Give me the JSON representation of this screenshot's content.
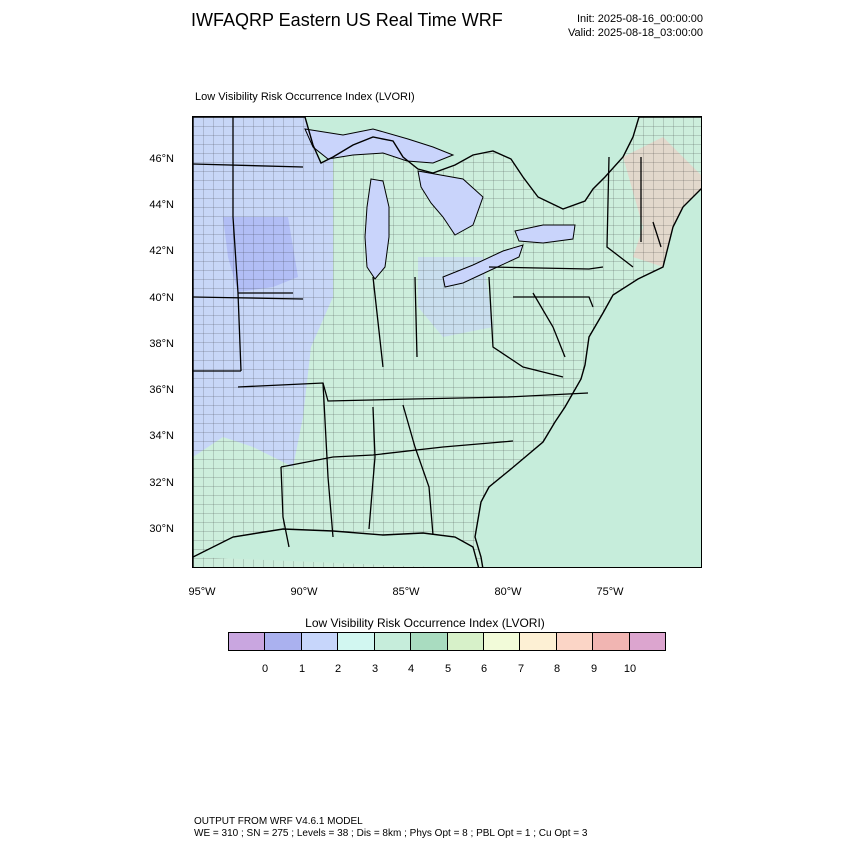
{
  "header": {
    "title": "IWFAQRP Eastern US Real Time WRF",
    "init": "Init: 2025-08-16_00:00:00",
    "valid": "Valid: 2025-08-18_03:00:00"
  },
  "map": {
    "label": "Low Visibility Risk Occurrence Index   (LVORI)",
    "lat_labels": [
      "46°N",
      "44°N",
      "42°N",
      "40°N",
      "38°N",
      "36°N",
      "34°N",
      "32°N",
      "30°N"
    ],
    "lon_labels": [
      "95°W",
      "90°W",
      "85°W",
      "80°W",
      "75°W"
    ],
    "colors": {
      "water": "#c6eddb",
      "lake": "#c9d4fb",
      "land_green": "#cdeedc",
      "land_blue": "#c6d3fa",
      "land_purple": "#aab4f3",
      "warm": "#f4c6bf",
      "outline": "#000000"
    }
  },
  "colorbar": {
    "title": "Low Visibility Risk Occurrence Index  (LVORI)",
    "colors": [
      "#c9a6e0",
      "#aab1ef",
      "#c7d6fb",
      "#d2f7f1",
      "#c6eddb",
      "#a9dcc0",
      "#d7f1c9",
      "#f2fbd9",
      "#fdf0d4",
      "#fbd5c6",
      "#f1b5b2",
      "#dca5cf"
    ],
    "labels": [
      "0",
      "1",
      "2",
      "3",
      "4",
      "5",
      "6",
      "7",
      "8",
      "9",
      "10"
    ]
  },
  "footer": {
    "line1": "OUTPUT FROM WRF V4.6.1 MODEL",
    "line2": "WE = 310 ; SN = 275 ; Levels = 38 ; Dis = 8km ; Phys Opt = 8 ; PBL Opt = 1 ; Cu Opt = 3"
  }
}
